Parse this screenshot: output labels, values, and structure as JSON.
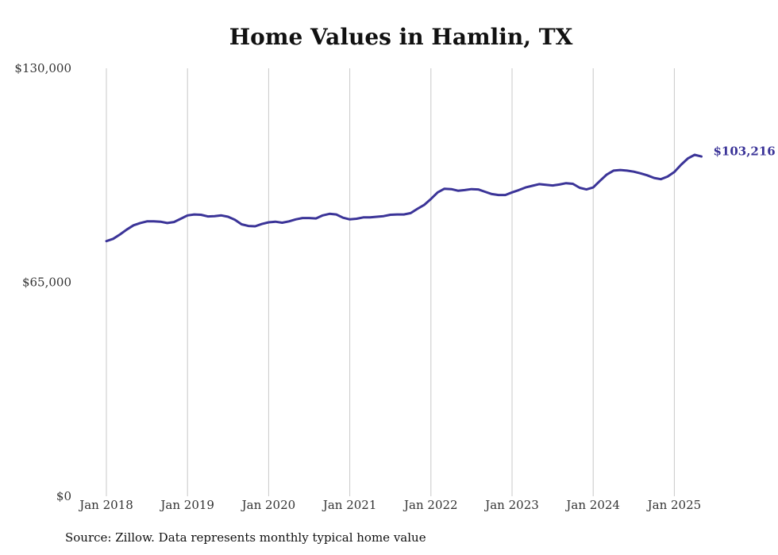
{
  "chart_data": {
    "type": "line",
    "title": "Home Values in Hamlin, TX",
    "ylim": [
      0,
      130000
    ],
    "y_ticks": [
      "$0",
      "$65,000",
      "$130,000"
    ],
    "y_tick_values": [
      0,
      65000,
      130000
    ],
    "x_ticks": [
      "Jan 2018",
      "Jan 2019",
      "Jan 2020",
      "Jan 2021",
      "Jan 2022",
      "Jan 2023",
      "Jan 2024",
      "Jan 2025"
    ],
    "x_tick_values": [
      2018,
      2019,
      2020,
      2021,
      2022,
      2023,
      2024,
      2025
    ],
    "grid": "vertical",
    "series": [
      {
        "color": "#3b3498",
        "end_label": "$103,216",
        "points": [
          [
            "2018-01",
            77500
          ],
          [
            "2018-02",
            78200
          ],
          [
            "2018-03",
            79500
          ],
          [
            "2018-04",
            81000
          ],
          [
            "2018-05",
            82300
          ],
          [
            "2018-06",
            83000
          ],
          [
            "2018-07",
            83500
          ],
          [
            "2018-08",
            83500
          ],
          [
            "2018-09",
            83400
          ],
          [
            "2018-10",
            83000
          ],
          [
            "2018-11",
            83300
          ],
          [
            "2018-12",
            84300
          ],
          [
            "2019-01",
            85300
          ],
          [
            "2019-02",
            85600
          ],
          [
            "2019-03",
            85500
          ],
          [
            "2019-04",
            85000
          ],
          [
            "2019-05",
            85100
          ],
          [
            "2019-06",
            85300
          ],
          [
            "2019-07",
            84900
          ],
          [
            "2019-08",
            84000
          ],
          [
            "2019-09",
            82600
          ],
          [
            "2019-10",
            82100
          ],
          [
            "2019-11",
            82000
          ],
          [
            "2019-12",
            82700
          ],
          [
            "2020-01",
            83200
          ],
          [
            "2020-02",
            83400
          ],
          [
            "2020-03",
            83100
          ],
          [
            "2020-04",
            83500
          ],
          [
            "2020-05",
            84100
          ],
          [
            "2020-06",
            84500
          ],
          [
            "2020-07",
            84500
          ],
          [
            "2020-08",
            84400
          ],
          [
            "2020-09",
            85300
          ],
          [
            "2020-10",
            85800
          ],
          [
            "2020-11",
            85600
          ],
          [
            "2020-12",
            84600
          ],
          [
            "2021-01",
            84100
          ],
          [
            "2021-02",
            84300
          ],
          [
            "2021-03",
            84700
          ],
          [
            "2021-04",
            84700
          ],
          [
            "2021-05",
            84900
          ],
          [
            "2021-06",
            85100
          ],
          [
            "2021-07",
            85500
          ],
          [
            "2021-08",
            85600
          ],
          [
            "2021-09",
            85600
          ],
          [
            "2021-10",
            86000
          ],
          [
            "2021-11",
            87300
          ],
          [
            "2021-12",
            88500
          ],
          [
            "2022-01",
            90300
          ],
          [
            "2022-02",
            92300
          ],
          [
            "2022-03",
            93400
          ],
          [
            "2022-04",
            93300
          ],
          [
            "2022-05",
            92800
          ],
          [
            "2022-06",
            93000
          ],
          [
            "2022-07",
            93300
          ],
          [
            "2022-08",
            93200
          ],
          [
            "2022-09",
            92500
          ],
          [
            "2022-10",
            91800
          ],
          [
            "2022-11",
            91500
          ],
          [
            "2022-12",
            91500
          ],
          [
            "2023-01",
            92300
          ],
          [
            "2023-02",
            93000
          ],
          [
            "2023-03",
            93800
          ],
          [
            "2023-04",
            94300
          ],
          [
            "2023-05",
            94800
          ],
          [
            "2023-06",
            94600
          ],
          [
            "2023-07",
            94400
          ],
          [
            "2023-08",
            94700
          ],
          [
            "2023-09",
            95100
          ],
          [
            "2023-10",
            94900
          ],
          [
            "2023-11",
            93700
          ],
          [
            "2023-12",
            93200
          ],
          [
            "2024-01",
            93800
          ],
          [
            "2024-02",
            95800
          ],
          [
            "2024-03",
            97700
          ],
          [
            "2024-04",
            98900
          ],
          [
            "2024-05",
            99100
          ],
          [
            "2024-06",
            98900
          ],
          [
            "2024-07",
            98600
          ],
          [
            "2024-08",
            98100
          ],
          [
            "2024-09",
            97500
          ],
          [
            "2024-10",
            96700
          ],
          [
            "2024-11",
            96300
          ],
          [
            "2024-12",
            97100
          ],
          [
            "2025-01",
            98500
          ],
          [
            "2025-02",
            100700
          ],
          [
            "2025-03",
            102600
          ],
          [
            "2025-04",
            103700
          ],
          [
            "2025-05",
            103216
          ]
        ]
      }
    ]
  },
  "source_note": "Source: Zillow. Data represents monthly typical home value"
}
